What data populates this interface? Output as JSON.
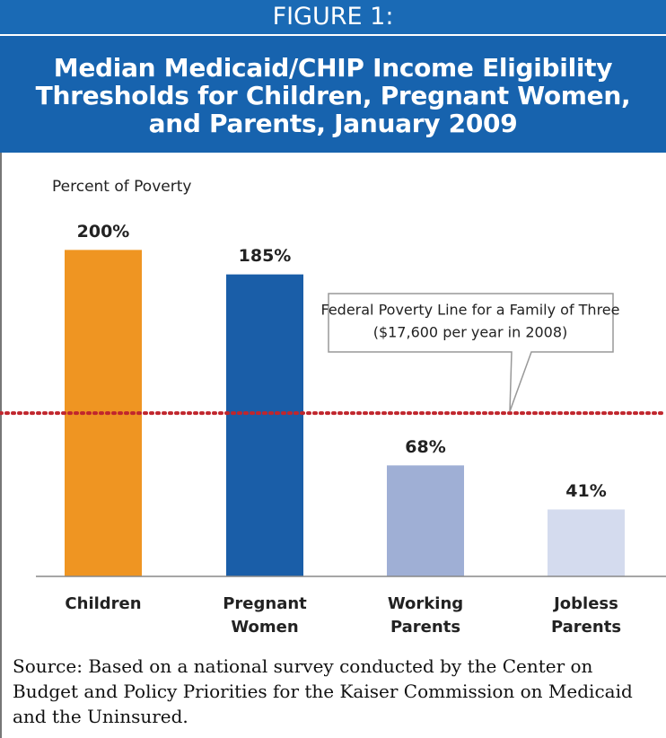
{
  "chart_data": {
    "type": "bar",
    "figure_label": "FIGURE 1:",
    "title": [
      "Median Medicaid/CHIP Income Eligibility",
      "Thresholds for Children, Pregnant Women,",
      "and Parents, January 2009"
    ],
    "y_label": "Percent of Poverty",
    "categories": [
      "Children",
      "Pregnant Women",
      "Working Parents",
      "Jobless Parents"
    ],
    "values": [
      200,
      185,
      68,
      41
    ],
    "value_labels": [
      "200%",
      "185%",
      "68%",
      "41%"
    ],
    "colors": [
      "#ef9522",
      "#1a5ea8",
      "#9fafd5",
      "#d4dbee"
    ],
    "ylim": [
      0,
      220
    ],
    "reference_line": {
      "value": 100,
      "color": "#c0262d",
      "label": [
        "Federal Poverty Line for a Family of Three",
        "($17,600 per year in 2008)"
      ]
    },
    "source": "Source: Based on a national survey conducted by the Center on Budget and Policy Priorities for the Kaiser Commission on Medicaid and the Uninsured."
  }
}
